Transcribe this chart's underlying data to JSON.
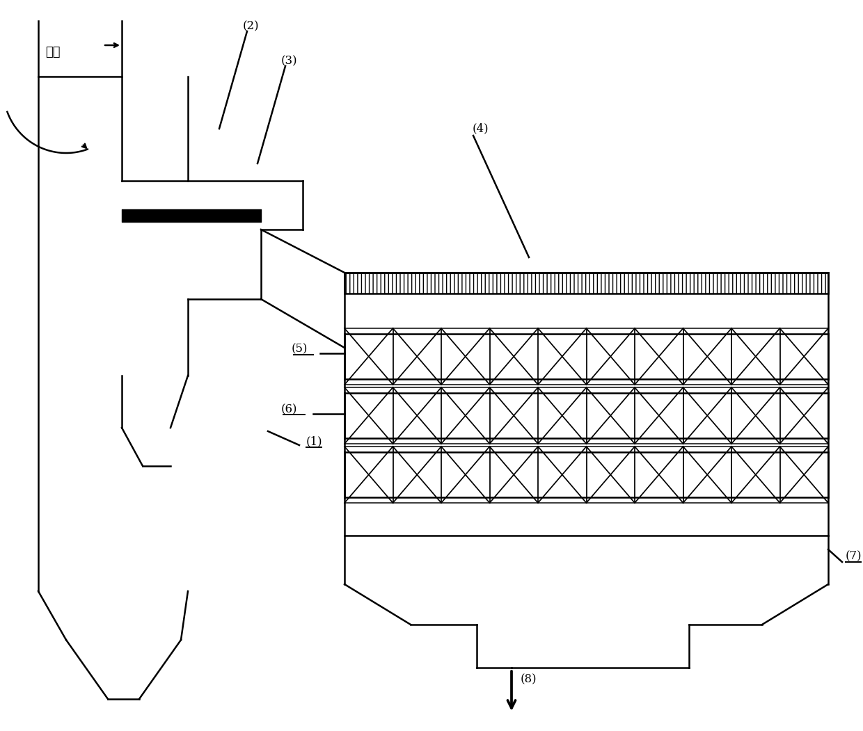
{
  "bg_color": "#ffffff",
  "line_color": "#000000",
  "figsize": [
    12.4,
    10.51
  ],
  "dpi": 100,
  "labels": {
    "smoke": "烟气",
    "1": "(1)",
    "2": "(2)",
    "3": "(3)",
    "4": "(4)",
    "5": "(5)",
    "6": "(6)",
    "7": "(7)",
    "8": "(8)"
  }
}
